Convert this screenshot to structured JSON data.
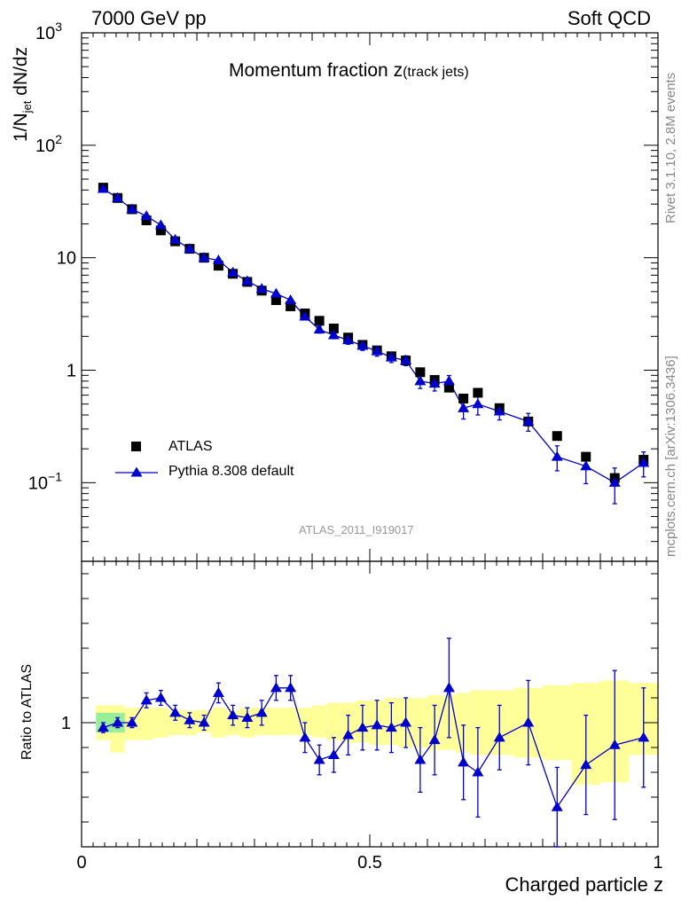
{
  "header": {
    "left": "7000 GeV pp",
    "right": "Soft QCD",
    "side_top": "Rivet 3.1.10,  2.8M events",
    "side_bottom": "mcplots.cern.ch [arXiv:1306.3436]"
  },
  "chart_data": [
    {
      "type": "scatter",
      "panel": "main",
      "title_main": "Momentum fraction z",
      "title_sub": "(track jets)",
      "ylabel": "1/N_jet dN/dz",
      "ylabel_parts": [
        "1/N",
        "jet",
        " dN/dz"
      ],
      "yscale": "log",
      "ylim": [
        0.02,
        1000
      ],
      "xlim": [
        0,
        1
      ],
      "yticks": [
        {
          "v": 1000,
          "base": "10",
          "exp": "3"
        },
        {
          "v": 100,
          "base": "10",
          "exp": "2"
        },
        {
          "v": 10,
          "base": "10",
          "exp": ""
        },
        {
          "v": 1,
          "base": "1",
          "exp": ""
        },
        {
          "v": 0.1,
          "base": "10",
          "exp": "−1"
        }
      ],
      "analysis_id": "ATLAS_2011_I919017",
      "legend": [
        "ATLAS",
        "Pythia 8.308 default"
      ],
      "legend_position": "lower-left",
      "series": [
        {
          "name": "ATLAS",
          "marker": "square",
          "color": "#000000",
          "x": [
            0.0375,
            0.0625,
            0.0875,
            0.1125,
            0.1375,
            0.1625,
            0.1875,
            0.2125,
            0.2375,
            0.2625,
            0.2875,
            0.3125,
            0.3375,
            0.3625,
            0.3875,
            0.4125,
            0.4375,
            0.4625,
            0.4875,
            0.5125,
            0.5375,
            0.5625,
            0.5875,
            0.6125,
            0.6375,
            0.6625,
            0.6875,
            0.725,
            0.775,
            0.825,
            0.875,
            0.925,
            0.975
          ],
          "y": [
            42,
            34,
            27,
            21.5,
            17.5,
            14,
            12,
            10,
            8.5,
            7.2,
            6.1,
            5.1,
            4.2,
            3.7,
            3.2,
            2.75,
            2.35,
            1.95,
            1.68,
            1.5,
            1.33,
            1.22,
            0.96,
            0.82,
            0.7,
            0.56,
            0.63,
            0.46,
            0.35,
            0.26,
            0.17,
            0.11,
            0.16
          ]
        },
        {
          "name": "Pythia 8.308 default",
          "marker": "triangle",
          "color": "#0000cc",
          "x": [
            0.0375,
            0.0625,
            0.0875,
            0.1125,
            0.1375,
            0.1625,
            0.1875,
            0.2125,
            0.2375,
            0.2625,
            0.2875,
            0.3125,
            0.3375,
            0.3625,
            0.3875,
            0.4125,
            0.4375,
            0.4625,
            0.4875,
            0.5125,
            0.5375,
            0.5625,
            0.5875,
            0.6125,
            0.6375,
            0.6625,
            0.6875,
            0.725,
            0.775,
            0.825,
            0.875,
            0.925,
            0.975
          ],
          "y": [
            41,
            34,
            27,
            23.5,
            19.5,
            14.5,
            12,
            10,
            9.5,
            7.4,
            6.2,
            5.3,
            4.8,
            4.2,
            3,
            2.3,
            2.05,
            1.85,
            1.65,
            1.48,
            1.3,
            1.22,
            0.8,
            0.76,
            0.8,
            0.46,
            0.5,
            0.43,
            0.35,
            0.17,
            0.14,
            0.1,
            0.15
          ],
          "err": [
            0.02,
            0.02,
            0.02,
            0.03,
            0.03,
            0.03,
            0.03,
            0.03,
            0.04,
            0.04,
            0.04,
            0.05,
            0.05,
            0.05,
            0.06,
            0.07,
            0.07,
            0.08,
            0.09,
            0.1,
            0.1,
            0.1,
            0.14,
            0.14,
            0.12,
            0.2,
            0.2,
            0.16,
            0.18,
            0.25,
            0.3,
            0.35,
            0.25
          ]
        }
      ]
    },
    {
      "type": "scatter",
      "panel": "ratio",
      "ylabel": "Ratio to ATLAS",
      "ylim": [
        0.5,
        1.65
      ],
      "xlim": [
        0,
        1
      ],
      "xlabel": "Charged particle z",
      "xticks": [
        {
          "v": 0,
          "label": "0"
        },
        {
          "v": 0.5,
          "label": "0.5"
        },
        {
          "v": 1,
          "label": "1"
        }
      ],
      "yticks": [
        {
          "v": 1,
          "label": "1"
        }
      ],
      "band": {
        "name": "ATLAS uncertainty",
        "color": "#ffff99",
        "edges": [
          0.025,
          0.05,
          0.075,
          0.1,
          0.125,
          0.15,
          0.175,
          0.2,
          0.225,
          0.25,
          0.275,
          0.3,
          0.325,
          0.35,
          0.375,
          0.4,
          0.425,
          0.45,
          0.475,
          0.5,
          0.525,
          0.55,
          0.575,
          0.6,
          0.625,
          0.65,
          0.675,
          0.7,
          0.75,
          0.8,
          0.85,
          0.9,
          0.95,
          1.0
        ],
        "lo": [
          0.93,
          0.88,
          0.93,
          0.93,
          0.94,
          0.95,
          0.95,
          0.96,
          0.94,
          0.95,
          0.94,
          0.95,
          0.95,
          0.95,
          0.95,
          0.94,
          0.93,
          0.92,
          0.92,
          0.91,
          0.91,
          0.9,
          0.9,
          0.89,
          0.89,
          0.88,
          0.87,
          0.87,
          0.86,
          0.85,
          0.75,
          0.76,
          0.87
        ],
        "hi": [
          1.07,
          1.07,
          1.06,
          1.06,
          1.06,
          1.05,
          1.05,
          1.05,
          1.06,
          1.05,
          1.06,
          1.06,
          1.06,
          1.06,
          1.06,
          1.07,
          1.08,
          1.08,
          1.09,
          1.09,
          1.1,
          1.1,
          1.1,
          1.11,
          1.11,
          1.12,
          1.13,
          1.13,
          1.14,
          1.15,
          1.16,
          1.17,
          1.16
        ]
      },
      "green_patch": {
        "x": [
          0.025,
          0.075
        ],
        "y": [
          0.96,
          1.04
        ],
        "color": "#99ee99"
      },
      "series": [
        {
          "name": "Pythia 8.308 default",
          "marker": "triangle",
          "color": "#0000cc",
          "x": [
            0.0375,
            0.0625,
            0.0875,
            0.1125,
            0.1375,
            0.1625,
            0.1875,
            0.2125,
            0.2375,
            0.2625,
            0.2875,
            0.3125,
            0.3375,
            0.3625,
            0.3875,
            0.4125,
            0.4375,
            0.4625,
            0.4875,
            0.5125,
            0.5375,
            0.5625,
            0.5875,
            0.6125,
            0.6375,
            0.6625,
            0.6875,
            0.725,
            0.775,
            0.825,
            0.875,
            0.925,
            0.975
          ],
          "y": [
            0.98,
            1.0,
            1.0,
            1.09,
            1.1,
            1.04,
            1.01,
            1.0,
            1.12,
            1.03,
            1.02,
            1.04,
            1.14,
            1.14,
            0.94,
            0.85,
            0.87,
            0.95,
            0.98,
            0.99,
            0.98,
            1.0,
            0.85,
            0.93,
            1.14,
            0.84,
            0.8,
            0.94,
            1.0,
            0.66,
            0.83,
            0.91,
            0.94
          ],
          "err": [
            0.02,
            0.02,
            0.02,
            0.03,
            0.03,
            0.03,
            0.03,
            0.03,
            0.04,
            0.04,
            0.04,
            0.05,
            0.05,
            0.05,
            0.06,
            0.06,
            0.07,
            0.08,
            0.09,
            0.1,
            0.1,
            0.1,
            0.13,
            0.14,
            0.2,
            0.15,
            0.18,
            0.13,
            0.17,
            0.16,
            0.2,
            0.3,
            0.2
          ]
        }
      ]
    }
  ]
}
